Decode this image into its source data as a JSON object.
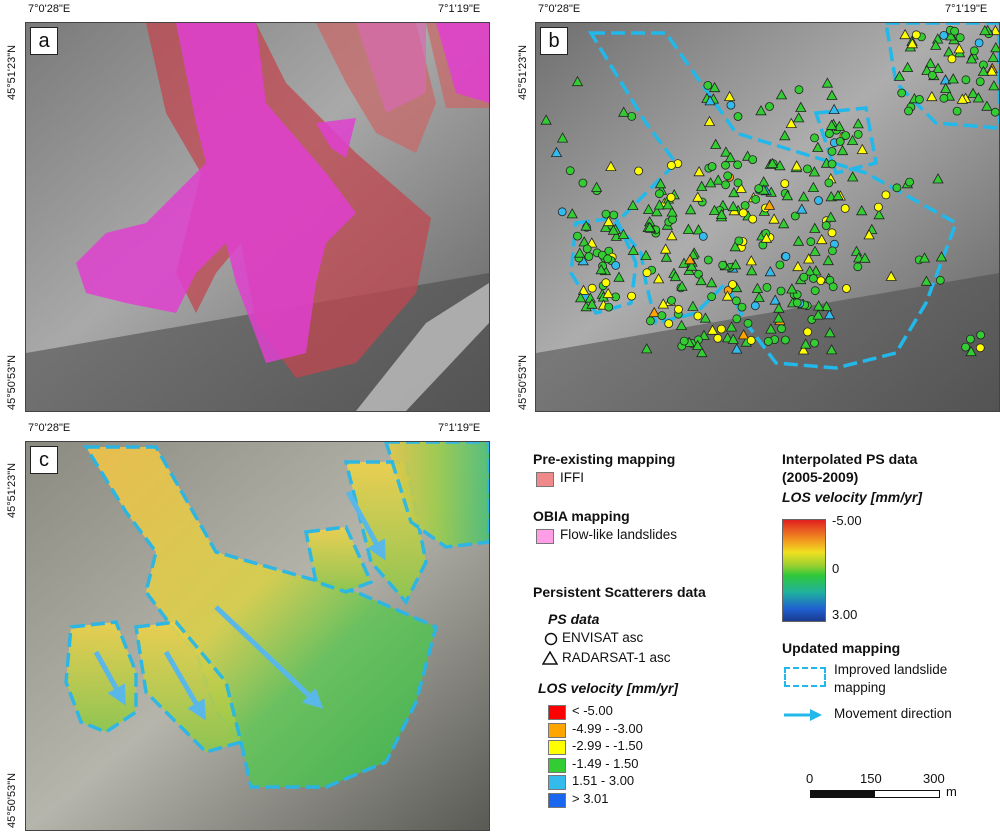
{
  "coords": {
    "lon_west": "7°0'28\"E",
    "lon_east": "7°1'19\"E",
    "lat_north": "45°51'23\"N",
    "lat_south": "45°50'53\"N"
  },
  "panels": {
    "a": {
      "letter": "a"
    },
    "b": {
      "letter": "b"
    },
    "c": {
      "letter": "c"
    }
  },
  "legend": {
    "pre_existing": {
      "title": "Pre-existing mapping",
      "item": "IFFI",
      "color": "#f08a8a"
    },
    "obia": {
      "title": "OBIA mapping",
      "item": "Flow-like landslides",
      "color": "#ff9de6"
    },
    "ps": {
      "title": "Persistent Scatterers data",
      "data_title": "PS data",
      "circle_label": "ENVISAT asc",
      "triangle_label": "RADARSAT-1 asc",
      "velocity_title": "LOS velocity [mm/yr]",
      "classes": [
        {
          "label": "< -5.00",
          "color": "#ff0000"
        },
        {
          "label": "-4.99 - -3.00",
          "color": "#ffa500"
        },
        {
          "label": "-2.99 - -1.50",
          "color": "#ffff00"
        },
        {
          "label": "-1.49 - 1.50",
          "color": "#33cc33"
        },
        {
          "label": "1.51 - 3.00",
          "color": "#33bbee"
        },
        {
          "label": "> 3.01",
          "color": "#1a66ee"
        }
      ]
    },
    "interpolated": {
      "title_line1": "Interpolated PS data",
      "title_line2": "(2005-2009)",
      "velocity_title": "LOS velocity [mm/yr]",
      "ramp_top": "-5.00",
      "ramp_mid": "0",
      "ramp_bottom": "3.00"
    },
    "updated": {
      "title": "Updated mapping",
      "improved_line1": "Improved landslide",
      "improved_line2": "mapping",
      "movement": "Movement direction",
      "line_color": "#22b8ea"
    },
    "scale": {
      "t0": "0",
      "t1": "150",
      "t2": "300",
      "unit": "m"
    }
  }
}
